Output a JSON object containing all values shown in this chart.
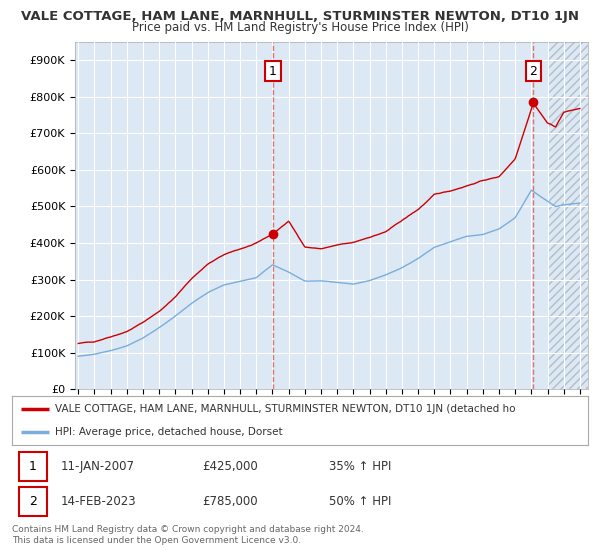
{
  "title": "VALE COTTAGE, HAM LANE, MARNHULL, STURMINSTER NEWTON, DT10 1JN",
  "subtitle": "Price paid vs. HM Land Registry's House Price Index (HPI)",
  "ylabel_ticks": [
    "£0",
    "£100K",
    "£200K",
    "£300K",
    "£400K",
    "£500K",
    "£600K",
    "£700K",
    "£800K",
    "£900K"
  ],
  "ytick_values": [
    0,
    100000,
    200000,
    300000,
    400000,
    500000,
    600000,
    700000,
    800000,
    900000
  ],
  "ylim": [
    0,
    950000
  ],
  "xlim_start": 1994.8,
  "xlim_end": 2026.5,
  "hatch_start": 2024.0,
  "background_color": "#ffffff",
  "plot_bg_color": "#dce9f5",
  "grid_color": "#ffffff",
  "hatch_color": "#c0c8d0",
  "red_line_color": "#cc0000",
  "blue_line_color": "#7aaddb",
  "marker1_x": 2007.03,
  "marker1_y": 425000,
  "marker2_x": 2023.12,
  "marker2_y": 785000,
  "marker1_label": "1",
  "marker2_label": "2",
  "marker1_date": "11-JAN-2007",
  "marker1_price": "£425,000",
  "marker1_hpi": "35% ↑ HPI",
  "marker2_date": "14-FEB-2023",
  "marker2_price": "£785,000",
  "marker2_hpi": "50% ↑ HPI",
  "legend_red": "VALE COTTAGE, HAM LANE, MARNHULL, STURMINSTER NEWTON, DT10 1JN (detached ho",
  "legend_blue": "HPI: Average price, detached house, Dorset",
  "footer": "Contains HM Land Registry data © Crown copyright and database right 2024.\nThis data is licensed under the Open Government Licence v3.0.",
  "xtick_years": [
    1995,
    1996,
    1997,
    1998,
    1999,
    2000,
    2001,
    2002,
    2003,
    2004,
    2005,
    2006,
    2007,
    2008,
    2009,
    2010,
    2011,
    2012,
    2013,
    2014,
    2015,
    2016,
    2017,
    2018,
    2019,
    2020,
    2021,
    2022,
    2023,
    2024,
    2025,
    2026
  ]
}
